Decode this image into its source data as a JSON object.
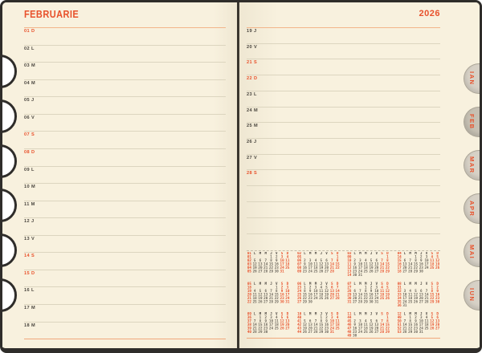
{
  "header": {
    "month_title": "FEBRUARIE",
    "year": "2026"
  },
  "left_page": {
    "rows": [
      {
        "date": "01",
        "day": "D",
        "weekend": true
      },
      {
        "date": "02",
        "day": "L",
        "weekend": false
      },
      {
        "date": "03",
        "day": "M",
        "weekend": false
      },
      {
        "date": "04",
        "day": "M",
        "weekend": false
      },
      {
        "date": "05",
        "day": "J",
        "weekend": false
      },
      {
        "date": "06",
        "day": "V",
        "weekend": false
      },
      {
        "date": "07",
        "day": "S",
        "weekend": true
      },
      {
        "date": "08",
        "day": "D",
        "weekend": true
      },
      {
        "date": "09",
        "day": "L",
        "weekend": false
      },
      {
        "date": "10",
        "day": "M",
        "weekend": false
      },
      {
        "date": "11",
        "day": "M",
        "weekend": false
      },
      {
        "date": "12",
        "day": "J",
        "weekend": false
      },
      {
        "date": "13",
        "day": "V",
        "weekend": false
      },
      {
        "date": "14",
        "day": "S",
        "weekend": true
      },
      {
        "date": "15",
        "day": "D",
        "weekend": true
      },
      {
        "date": "16",
        "day": "L",
        "weekend": false
      },
      {
        "date": "17",
        "day": "M",
        "weekend": false
      },
      {
        "date": "18",
        "day": "M",
        "weekend": false
      }
    ]
  },
  "right_page": {
    "rows": [
      {
        "date": "19",
        "day": "J",
        "weekend": false
      },
      {
        "date": "20",
        "day": "V",
        "weekend": false
      },
      {
        "date": "21",
        "day": "S",
        "weekend": true
      },
      {
        "date": "22",
        "day": "D",
        "weekend": true
      },
      {
        "date": "23",
        "day": "L",
        "weekend": false
      },
      {
        "date": "24",
        "day": "M",
        "weekend": false
      },
      {
        "date": "25",
        "day": "M",
        "weekend": false
      },
      {
        "date": "26",
        "day": "J",
        "weekend": false
      },
      {
        "date": "27",
        "day": "V",
        "weekend": false
      },
      {
        "date": "28",
        "day": "S",
        "weekend": true
      }
    ],
    "blank_rows": 3
  },
  "tabs": [
    {
      "label": "IAN",
      "active": false
    },
    {
      "label": "FEB",
      "active": true
    },
    {
      "label": "MAR",
      "active": false
    },
    {
      "label": "APR",
      "active": false
    },
    {
      "label": "MAI",
      "active": false
    },
    {
      "label": "IUN",
      "active": false
    }
  ],
  "mini_calendars": {
    "day_headers": [
      "L",
      "M",
      "M",
      "J",
      "V",
      "S",
      "D"
    ],
    "note_row_format": "week_number_then_7_days",
    "months": [
      {
        "label": "01",
        "weeks": [
          [
            "01",
            "",
            "",
            "",
            "1",
            "2",
            "3",
            "4"
          ],
          [
            "02",
            "5",
            "6",
            "7",
            "8",
            "9",
            "10",
            "11"
          ],
          [
            "03",
            "12",
            "13",
            "14",
            "15",
            "16",
            "17",
            "18"
          ],
          [
            "04",
            "19",
            "20",
            "21",
            "22",
            "23",
            "24",
            "25"
          ],
          [
            "05",
            "26",
            "27",
            "28",
            "29",
            "30",
            "31",
            ""
          ]
        ]
      },
      {
        "label": "02",
        "weeks": [
          [
            "05",
            "",
            "",
            "",
            "",
            "",
            "",
            "1"
          ],
          [
            "06",
            "2",
            "3",
            "4",
            "5",
            "6",
            "7",
            "8"
          ],
          [
            "07",
            "9",
            "10",
            "11",
            "12",
            "13",
            "14",
            "15"
          ],
          [
            "08",
            "16",
            "17",
            "18",
            "19",
            "20",
            "21",
            "22"
          ],
          [
            "09",
            "23",
            "24",
            "25",
            "26",
            "27",
            "28",
            ""
          ]
        ]
      },
      {
        "label": "03",
        "weeks": [
          [
            "09",
            "",
            "",
            "",
            "",
            "",
            "",
            "1"
          ],
          [
            "10",
            "2",
            "3",
            "4",
            "5",
            "6",
            "7",
            "8"
          ],
          [
            "11",
            "9",
            "10",
            "11",
            "12",
            "13",
            "14",
            "15"
          ],
          [
            "12",
            "16",
            "17",
            "18",
            "19",
            "20",
            "21",
            "22"
          ],
          [
            "13",
            "23",
            "24",
            "25",
            "26",
            "27",
            "28",
            "29"
          ],
          [
            "14",
            "30",
            "31",
            "",
            "",
            "",
            "",
            ""
          ]
        ]
      },
      {
        "label": "04",
        "weeks": [
          [
            "14",
            "",
            "",
            "1",
            "2",
            "3",
            "4",
            "5"
          ],
          [
            "15",
            "6",
            "7",
            "8",
            "9",
            "10",
            "11",
            "12"
          ],
          [
            "16",
            "13",
            "14",
            "15",
            "16",
            "17",
            "18",
            "19"
          ],
          [
            "17",
            "20",
            "21",
            "22",
            "23",
            "24",
            "25",
            "26"
          ],
          [
            "18",
            "27",
            "28",
            "29",
            "30",
            "",
            "",
            ""
          ]
        ]
      },
      {
        "label": "05",
        "weeks": [
          [
            "18",
            "",
            "",
            "",
            "",
            "1",
            "2",
            "3"
          ],
          [
            "19",
            "4",
            "5",
            "6",
            "7",
            "8",
            "9",
            "10"
          ],
          [
            "20",
            "11",
            "12",
            "13",
            "14",
            "15",
            "16",
            "17"
          ],
          [
            "21",
            "18",
            "19",
            "20",
            "21",
            "22",
            "23",
            "24"
          ],
          [
            "22",
            "25",
            "26",
            "27",
            "28",
            "29",
            "30",
            "31"
          ]
        ]
      },
      {
        "label": "06",
        "weeks": [
          [
            "23",
            "1",
            "2",
            "3",
            "4",
            "5",
            "6",
            "7"
          ],
          [
            "24",
            "8",
            "9",
            "10",
            "11",
            "12",
            "13",
            "14"
          ],
          [
            "25",
            "15",
            "16",
            "17",
            "18",
            "19",
            "20",
            "21"
          ],
          [
            "26",
            "22",
            "23",
            "24",
            "25",
            "26",
            "27",
            "28"
          ],
          [
            "27",
            "29",
            "30",
            "",
            "",
            "",
            "",
            ""
          ]
        ]
      },
      {
        "label": "07",
        "weeks": [
          [
            "27",
            "",
            "",
            "1",
            "2",
            "3",
            "4",
            "5"
          ],
          [
            "28",
            "6",
            "7",
            "8",
            "9",
            "10",
            "11",
            "12"
          ],
          [
            "29",
            "13",
            "14",
            "15",
            "16",
            "17",
            "18",
            "19"
          ],
          [
            "30",
            "20",
            "21",
            "22",
            "23",
            "24",
            "25",
            "26"
          ],
          [
            "31",
            "27",
            "28",
            "29",
            "30",
            "31",
            "",
            ""
          ]
        ]
      },
      {
        "label": "08",
        "weeks": [
          [
            "31",
            "",
            "",
            "",
            "",
            "",
            "1",
            "2"
          ],
          [
            "32",
            "3",
            "4",
            "5",
            "6",
            "7",
            "8",
            "9"
          ],
          [
            "33",
            "10",
            "11",
            "12",
            "13",
            "14",
            "15",
            "16"
          ],
          [
            "34",
            "17",
            "18",
            "19",
            "20",
            "21",
            "22",
            "23"
          ],
          [
            "35",
            "24",
            "25",
            "26",
            "27",
            "28",
            "29",
            "30"
          ],
          [
            "36",
            "31",
            "",
            "",
            "",
            "",
            "",
            ""
          ]
        ]
      },
      {
        "label": "09",
        "weeks": [
          [
            "36",
            "",
            "1",
            "2",
            "3",
            "4",
            "5",
            "6"
          ],
          [
            "37",
            "7",
            "8",
            "9",
            "10",
            "11",
            "12",
            "13"
          ],
          [
            "38",
            "14",
            "15",
            "16",
            "17",
            "18",
            "19",
            "20"
          ],
          [
            "39",
            "21",
            "22",
            "23",
            "24",
            "25",
            "26",
            "27"
          ],
          [
            "40",
            "28",
            "29",
            "30",
            "",
            "",
            "",
            ""
          ]
        ]
      },
      {
        "label": "10",
        "weeks": [
          [
            "40",
            "",
            "",
            "",
            "1",
            "2",
            "3",
            "4"
          ],
          [
            "41",
            "5",
            "6",
            "7",
            "8",
            "9",
            "10",
            "11"
          ],
          [
            "42",
            "12",
            "13",
            "14",
            "15",
            "16",
            "17",
            "18"
          ],
          [
            "43",
            "19",
            "20",
            "21",
            "22",
            "23",
            "24",
            "25"
          ],
          [
            "44",
            "26",
            "27",
            "28",
            "29",
            "30",
            "31",
            ""
          ]
        ]
      },
      {
        "label": "11",
        "weeks": [
          [
            "44",
            "",
            "",
            "",
            "",
            "",
            "",
            "1"
          ],
          [
            "45",
            "2",
            "3",
            "4",
            "5",
            "6",
            "7",
            "8"
          ],
          [
            "46",
            "9",
            "10",
            "11",
            "12",
            "13",
            "14",
            "15"
          ],
          [
            "47",
            "16",
            "17",
            "18",
            "19",
            "20",
            "21",
            "22"
          ],
          [
            "48",
            "23",
            "24",
            "25",
            "26",
            "27",
            "28",
            "29"
          ],
          [
            "49",
            "30",
            "",
            "",
            "",
            "",
            "",
            ""
          ]
        ]
      },
      {
        "label": "12",
        "weeks": [
          [
            "49",
            "",
            "1",
            "2",
            "3",
            "4",
            "5",
            "6"
          ],
          [
            "50",
            "7",
            "8",
            "9",
            "10",
            "11",
            "12",
            "13"
          ],
          [
            "51",
            "14",
            "15",
            "16",
            "17",
            "18",
            "19",
            "20"
          ],
          [
            "52",
            "21",
            "22",
            "23",
            "24",
            "25",
            "26",
            "27"
          ],
          [
            "53",
            "28",
            "29",
            "30",
            "31",
            "",
            "",
            ""
          ]
        ]
      }
    ]
  },
  "colors": {
    "accent": "#e8512b",
    "ink": "#49453e",
    "page_bg": "#f8f1de",
    "line": "#dcd5bf",
    "rule_orange": "#f0a87c",
    "tab_bg": "#d7d1c6",
    "tab_active_bg": "#c6c0b3",
    "border": "#2f2d2a"
  }
}
